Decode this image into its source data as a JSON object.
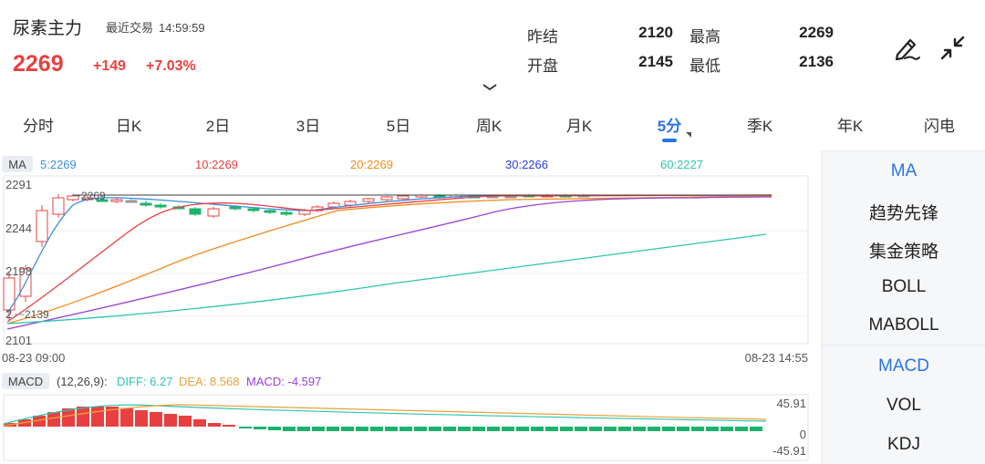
{
  "header": {
    "title": "尿素主力",
    "recent_label": "最近交易",
    "recent_time": "14:59:59",
    "price": "2269",
    "change": "+149",
    "change_pct": "+7.03%"
  },
  "stats": {
    "prev_settle_label": "昨结",
    "prev_settle": "2120",
    "high_label": "最高",
    "high": "2269",
    "open_label": "开盘",
    "open": "2145",
    "low_label": "最低",
    "low": "2136"
  },
  "icons": {
    "draw": "pen-draw-icon",
    "collapse": "collapse-arrows-icon",
    "caret": "chevron-down-icon"
  },
  "tabs": [
    {
      "label": "分时"
    },
    {
      "label": "日K"
    },
    {
      "label": "2日"
    },
    {
      "label": "3日"
    },
    {
      "label": "5日"
    },
    {
      "label": "周K"
    },
    {
      "label": "月K"
    },
    {
      "label": "5分"
    },
    {
      "label": "季K"
    },
    {
      "label": "年K"
    },
    {
      "label": "闪电"
    }
  ],
  "active_tab": "5分",
  "ma_legend": {
    "tag": "MA",
    "items": [
      {
        "label": "5:2269",
        "color": "#3b8fe0"
      },
      {
        "label": "10:2269",
        "color": "#e84040"
      },
      {
        "label": "20:2269",
        "color": "#f08c1e"
      },
      {
        "label": "30:2266",
        "color": "#2a3bd6"
      },
      {
        "label": "60:2227",
        "color": "#2ec4b0"
      }
    ]
  },
  "price_axis": [
    "2291",
    "2244",
    "2198",
    "2101"
  ],
  "price_marks": {
    "high": "2269",
    "low": "2139",
    "low_prefix": "2"
  },
  "time_axis": {
    "start": "08-23 09:00",
    "end": "08-23 14:55"
  },
  "macd_legend": {
    "tag": "MACD",
    "params": "(12,26,9):",
    "diff": "DIFF: 6.27",
    "dea": "DEA: 8.568",
    "macd": "MACD: -4.597",
    "diff_color": "#2ec4b0",
    "dea_color": "#e8a23a",
    "macd_color": "#9b3fd6"
  },
  "macd_axis": {
    "top": "45.91",
    "zero": "0",
    "bottom": "-45.91"
  },
  "indicators_main": [
    {
      "label": "MA",
      "active": true
    },
    {
      "label": "趋势先锋",
      "active": false
    },
    {
      "label": "集金策略",
      "active": false
    },
    {
      "label": "BOLL",
      "active": false
    },
    {
      "label": "MABOLL",
      "active": false
    }
  ],
  "indicators_sub": [
    {
      "label": "MACD",
      "active": true
    },
    {
      "label": "VOL",
      "active": false
    },
    {
      "label": "KDJ",
      "active": false
    }
  ],
  "colors": {
    "up": "#e84040",
    "down": "#1bb36b",
    "accent": "#2a74e6"
  }
}
